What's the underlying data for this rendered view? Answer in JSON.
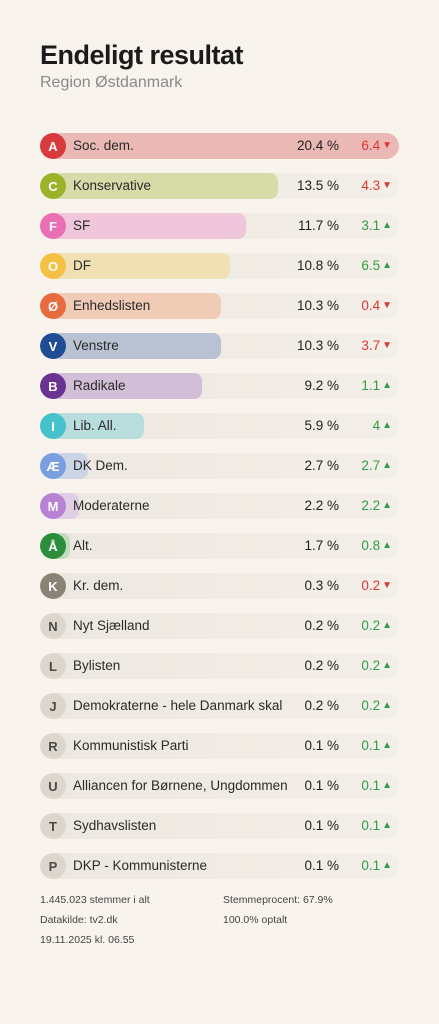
{
  "header": {
    "title": "Endeligt resultat",
    "subtitle": "Region Østdanmark"
  },
  "chart_data": {
    "type": "bar",
    "title": "Endeligt resultat",
    "subtitle": "Region Østdanmark",
    "xlim": [
      0,
      20.4
    ],
    "categories": [
      "Soc. dem.",
      "Konservative",
      "SF",
      "DF",
      "Enhedslisten",
      "Venstre",
      "Radikale",
      "Lib. All.",
      "DK Dem.",
      "Moderaterne",
      "Alt.",
      "Kr. dem.",
      "Nyt Sjælland",
      "Bylisten",
      "Demokraterne - hele Danmark skal",
      "Kommunistisk Parti",
      "Alliancen for Børnene, Ungdommen",
      "Sydhavslisten",
      "DKP - Kommunisterne"
    ],
    "values": [
      20.4,
      13.5,
      11.7,
      10.8,
      10.3,
      10.3,
      9.2,
      5.9,
      2.7,
      2.2,
      1.7,
      0.3,
      0.2,
      0.2,
      0.2,
      0.1,
      0.1,
      0.1,
      0.1
    ],
    "changes": [
      -6.4,
      -4.3,
      3.1,
      6.5,
      -0.4,
      -3.7,
      1.1,
      4,
      2.7,
      2.2,
      0.8,
      -0.2,
      0.2,
      0.2,
      0.2,
      0.1,
      0.1,
      0.1,
      0.1
    ]
  },
  "parties": [
    {
      "letter": "A",
      "name": "Soc. dem.",
      "value": 20.4,
      "pct": "20.4 %",
      "change": "6.4",
      "dir": "down",
      "color": "#d93a3e",
      "fill": "#eab9b5"
    },
    {
      "letter": "C",
      "name": "Konservative",
      "value": 13.5,
      "pct": "13.5 %",
      "change": "4.3",
      "dir": "down",
      "color": "#9ab32b",
      "fill": "#d6dba8"
    },
    {
      "letter": "F",
      "name": "SF",
      "value": 11.7,
      "pct": "11.7 %",
      "change": "3.1",
      "dir": "up",
      "color": "#ea6fb3",
      "fill": "#f0c6da"
    },
    {
      "letter": "O",
      "name": "DF",
      "value": 10.8,
      "pct": "10.8 %",
      "change": "6.5",
      "dir": "up",
      "color": "#f4c145",
      "fill": "#f1e0b4"
    },
    {
      "letter": "Ø",
      "name": "Enhedslisten",
      "value": 10.3,
      "pct": "10.3 %",
      "change": "0.4",
      "dir": "down",
      "color": "#e76b3e",
      "fill": "#f0cbb6"
    },
    {
      "letter": "V",
      "name": "Venstre",
      "value": 10.3,
      "pct": "10.3 %",
      "change": "3.7",
      "dir": "down",
      "color": "#1f4c95",
      "fill": "#b8c2d2"
    },
    {
      "letter": "B",
      "name": "Radikale",
      "value": 9.2,
      "pct": "9.2 %",
      "change": "1.1",
      "dir": "up",
      "color": "#6b3391",
      "fill": "#d2bed6"
    },
    {
      "letter": "I",
      "name": "Lib. All.",
      "value": 5.9,
      "pct": "5.9 %",
      "change": "4",
      "dir": "up",
      "color": "#45c2cb",
      "fill": "#b9dcdc"
    },
    {
      "letter": "Æ",
      "name": "DK Dem.",
      "value": 2.7,
      "pct": "2.7 %",
      "change": "2.7",
      "dir": "up",
      "color": "#7a9fe0",
      "fill": "#ccd5e6"
    },
    {
      "letter": "M",
      "name": "Moderaterne",
      "value": 2.2,
      "pct": "2.2 %",
      "change": "2.2",
      "dir": "up",
      "color": "#b782d3",
      "fill": "#e0cfe4"
    },
    {
      "letter": "Å",
      "name": "Alt.",
      "value": 1.7,
      "pct": "1.7 %",
      "change": "0.8",
      "dir": "up",
      "color": "#2c8d3c",
      "fill": "#c2dcbf"
    },
    {
      "letter": "K",
      "name": "Kr. dem.",
      "value": 0.3,
      "pct": "0.3 %",
      "change": "0.2",
      "dir": "down",
      "color": "#8a8274",
      "fill": "#d9d3c8"
    },
    {
      "letter": "N",
      "name": "Nyt Sjælland",
      "value": 0.2,
      "pct": "0.2 %",
      "change": "0.2",
      "dir": "up",
      "color": "#dcd6cc",
      "fill": "#e6e1d9",
      "light": true
    },
    {
      "letter": "L",
      "name": "Bylisten",
      "value": 0.2,
      "pct": "0.2 %",
      "change": "0.2",
      "dir": "up",
      "color": "#dcd6cc",
      "fill": "#e6e1d9",
      "light": true
    },
    {
      "letter": "J",
      "name": "Demokraterne - hele Danmark skal",
      "value": 0.2,
      "pct": "0.2 %",
      "change": "0.2",
      "dir": "up",
      "color": "#dcd6cc",
      "fill": "#e6e1d9",
      "light": true
    },
    {
      "letter": "R",
      "name": "Kommunistisk Parti",
      "value": 0.1,
      "pct": "0.1 %",
      "change": "0.1",
      "dir": "up",
      "color": "#dcd6cc",
      "fill": "#e6e1d9",
      "light": true
    },
    {
      "letter": "U",
      "name": "Alliancen for Børnene, Ungdommen",
      "value": 0.1,
      "pct": "0.1 %",
      "change": "0.1",
      "dir": "up",
      "color": "#dcd6cc",
      "fill": "#e6e1d9",
      "light": true
    },
    {
      "letter": "T",
      "name": "Sydhavslisten",
      "value": 0.1,
      "pct": "0.1 %",
      "change": "0.1",
      "dir": "up",
      "color": "#dcd6cc",
      "fill": "#e6e1d9",
      "light": true
    },
    {
      "letter": "P",
      "name": "DKP - Kommunisterne",
      "value": 0.1,
      "pct": "0.1 %",
      "change": "0.1",
      "dir": "up",
      "color": "#dcd6cc",
      "fill": "#e6e1d9",
      "light": true
    }
  ],
  "footer": {
    "votes": "1.445.023 stemmer i alt",
    "source": "Datakilde: tv2.dk",
    "timestamp": "19.11.2025 kl. 06.55",
    "turnout": "Stemmeprocent: 67.9%",
    "counted": "100.0% optalt"
  },
  "colors": {
    "background": "#f8f4ed",
    "up": "#2f9e44",
    "down": "#e03535"
  }
}
